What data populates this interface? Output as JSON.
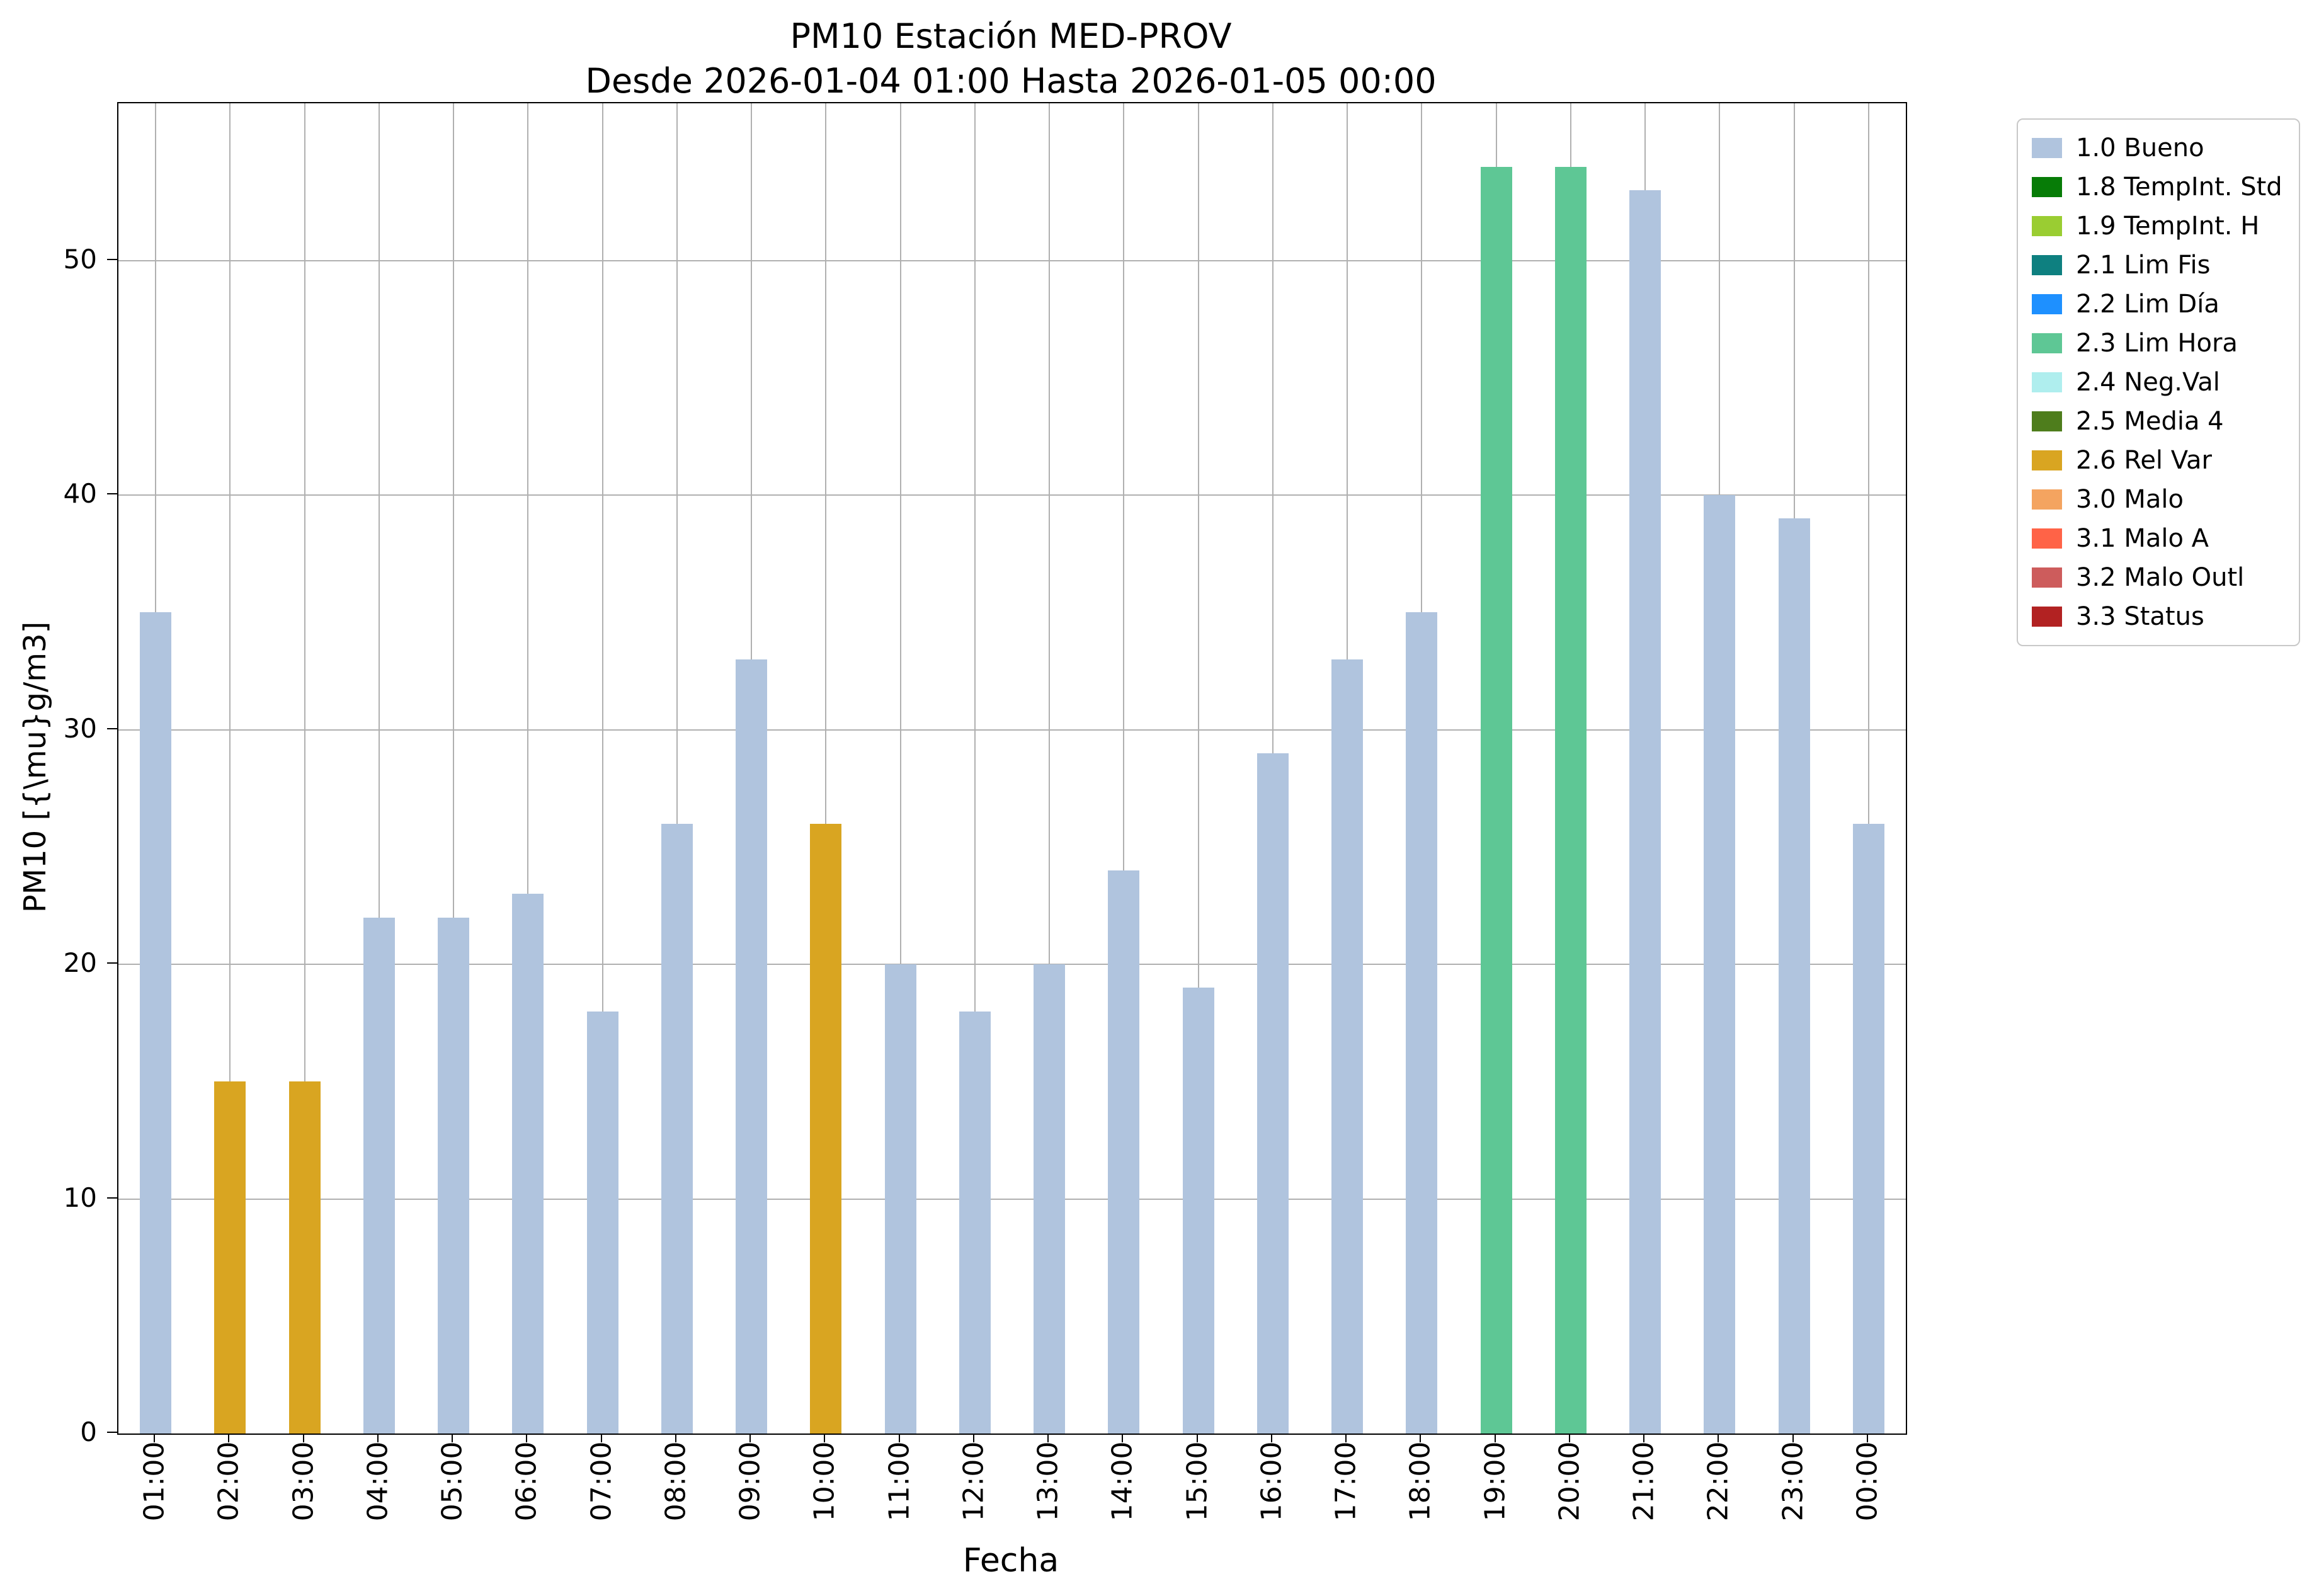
{
  "chart_data": {
    "type": "bar",
    "title": "PM10 Estación MED-PROV",
    "subtitle": "Desde 2026-01-04 01:00 Hasta 2026-01-05 00:00",
    "xlabel": "Fecha",
    "ylabel": "PM10 [{\\mu}g/m3]",
    "ylim": [
      0,
      56.7
    ],
    "yticks": [
      0,
      10,
      20,
      30,
      40,
      50
    ],
    "grid": true,
    "legend_position": "outside-upper-right",
    "categories": [
      "01:00",
      "02:00",
      "03:00",
      "04:00",
      "05:00",
      "06:00",
      "07:00",
      "08:00",
      "09:00",
      "10:00",
      "11:00",
      "12:00",
      "13:00",
      "14:00",
      "15:00",
      "16:00",
      "17:00",
      "18:00",
      "19:00",
      "20:00",
      "21:00",
      "22:00",
      "23:00",
      "00:00"
    ],
    "values": [
      35,
      15,
      15,
      22,
      22,
      23,
      18,
      26,
      33,
      26,
      20,
      18,
      20,
      24,
      19,
      29,
      33,
      35,
      54,
      54,
      53,
      40,
      39,
      26
    ],
    "bar_status": [
      "bueno",
      "relvar",
      "relvar",
      "bueno",
      "bueno",
      "bueno",
      "bueno",
      "bueno",
      "bueno",
      "relvar",
      "bueno",
      "bueno",
      "bueno",
      "bueno",
      "bueno",
      "bueno",
      "bueno",
      "bueno",
      "limhora",
      "limhora",
      "bueno",
      "bueno",
      "bueno",
      "bueno"
    ],
    "colors": {
      "bueno": "#b0c4de",
      "relvar": "#d9a521",
      "limhora": "#5ec795",
      "grid": "#b0b0b0",
      "axis": "#000000"
    },
    "legend": [
      {
        "label": "1.0 Bueno",
        "color": "#b0c4de"
      },
      {
        "label": "1.8 TempInt. Std",
        "color": "#077c07"
      },
      {
        "label": "1.9 TempInt. H",
        "color": "#9acd32"
      },
      {
        "label": "2.1 Lim Fis",
        "color": "#0e8080"
      },
      {
        "label": "2.2 Lim Día",
        "color": "#1e90ff"
      },
      {
        "label": "2.3 Lim Hora",
        "color": "#5ec795"
      },
      {
        "label": "2.4 Neg.Val",
        "color": "#afeeee"
      },
      {
        "label": "2.5 Media 4",
        "color": "#4e7d1c"
      },
      {
        "label": "2.6 Rel Var",
        "color": "#d9a521"
      },
      {
        "label": "3.0 Malo",
        "color": "#f4a460"
      },
      {
        "label": "3.1 Malo A",
        "color": "#ff6347"
      },
      {
        "label": "3.2 Malo Outl",
        "color": "#cd5c5c"
      },
      {
        "label": "3.3 Status",
        "color": "#b22222"
      }
    ]
  }
}
